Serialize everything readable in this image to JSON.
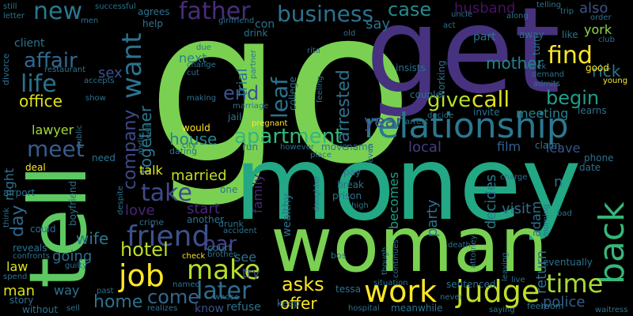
{
  "words": [
    {
      "text": "go",
      "color": "#7ad151"
    },
    {
      "text": "get",
      "color": "#46327e"
    },
    {
      "text": "tell",
      "color": "#5ec962"
    },
    {
      "text": "money",
      "color": "#22a884"
    },
    {
      "text": "woman",
      "color": "#7ad151"
    },
    {
      "text": "relationship",
      "color": "#2a788e"
    },
    {
      "text": "back",
      "color": "#35b779"
    },
    {
      "text": "judge",
      "color": "#bddf26"
    },
    {
      "text": "work",
      "color": "#fde725"
    },
    {
      "text": "job",
      "color": "#fde725"
    },
    {
      "text": "make",
      "color": "#b5de2b"
    },
    {
      "text": "friend",
      "color": "#3b528b"
    },
    {
      "text": "time",
      "color": "#a5db36"
    },
    {
      "text": "later",
      "color": "#2e6e8e"
    },
    {
      "text": "new",
      "color": "#2a788e"
    },
    {
      "text": "father",
      "color": "#472d7b"
    },
    {
      "text": "business",
      "color": "#2c728e"
    },
    {
      "text": "case",
      "color": "#238a8d"
    },
    {
      "text": "find",
      "color": "#fde725"
    },
    {
      "text": "life",
      "color": "#2c728e"
    },
    {
      "text": "want",
      "color": "#2c728e"
    },
    {
      "text": "affair",
      "color": "#31688e"
    },
    {
      "text": "meet",
      "color": "#365c8d"
    },
    {
      "text": "apartment",
      "color": "#35b779"
    },
    {
      "text": "call",
      "color": "#dde318"
    },
    {
      "text": "give",
      "color": "#b5de2b"
    },
    {
      "text": "take",
      "color": "#3e4a89"
    },
    {
      "text": "leaf",
      "color": "#2c728e"
    },
    {
      "text": "year",
      "color": "#3b528b"
    },
    {
      "text": "begin",
      "color": "#1f9e89"
    },
    {
      "text": "end",
      "color": "#3b528b"
    },
    {
      "text": "hotel",
      "color": "#bddf26"
    },
    {
      "text": "come",
      "color": "#31688e"
    },
    {
      "text": "asks",
      "color": "#fde725"
    },
    {
      "text": "police",
      "color": "#355f8d"
    },
    {
      "text": "bar",
      "color": "#414487"
    },
    {
      "text": "office",
      "color": "#dde318"
    },
    {
      "text": "home",
      "color": "#2c728e"
    },
    {
      "text": "offer",
      "color": "#fde725"
    },
    {
      "text": "mother",
      "color": "#26828e"
    },
    {
      "text": "company",
      "color": "#3e4a89"
    },
    {
      "text": "together",
      "color": "#2a788e"
    },
    {
      "text": "house",
      "color": "#26828e"
    },
    {
      "text": "love",
      "color": "#482475"
    },
    {
      "text": "rick",
      "color": "#2c728e"
    },
    {
      "text": "married",
      "color": "#c2df23"
    },
    {
      "text": "start",
      "color": "#482878"
    },
    {
      "text": "sex",
      "color": "#3b528b"
    },
    {
      "text": "day",
      "color": "#31688e"
    },
    {
      "text": "party",
      "color": "#2c728e"
    },
    {
      "text": "arrested",
      "color": "#2c728e"
    },
    {
      "text": "wife",
      "color": "#2a788e"
    },
    {
      "text": "husband",
      "color": "#471063"
    },
    {
      "text": "also",
      "color": "#3b528b"
    },
    {
      "text": "york",
      "color": "#90d743"
    },
    {
      "text": "meeting",
      "color": "#26828e"
    },
    {
      "text": "leave",
      "color": "#3b528b"
    },
    {
      "text": "film",
      "color": "#355f8d"
    },
    {
      "text": "local",
      "color": "#433e85"
    },
    {
      "text": "decides",
      "color": "#287c8e"
    },
    {
      "text": "visit",
      "color": "#2e6e8e"
    },
    {
      "text": "return",
      "color": "#2e6e8e"
    },
    {
      "text": "becomes",
      "color": "#1f9e89"
    },
    {
      "text": "going",
      "color": "#2e6e8e"
    },
    {
      "text": "lawyer",
      "color": "#a0da39"
    },
    {
      "text": "man",
      "color": "#d8e219"
    },
    {
      "text": "law",
      "color": "#dde318"
    },
    {
      "text": "talk",
      "color": "#e5e419"
    },
    {
      "text": "trial",
      "color": "#2a788e"
    },
    {
      "text": "next",
      "color": "#26828e"
    },
    {
      "text": "say",
      "color": "#2c728e"
    },
    {
      "text": "see",
      "color": "#2c728e"
    },
    {
      "text": "try",
      "color": "#3b528b"
    },
    {
      "text": "way",
      "color": "#2c728e"
    },
    {
      "text": "family",
      "color": "#482878"
    },
    {
      "text": "adam",
      "color": "#2c728e"
    },
    {
      "text": "know",
      "color": "#3b528b"
    },
    {
      "text": "refuse",
      "color": "#2c728e"
    },
    {
      "text": "night",
      "color": "#2c728e"
    },
    {
      "text": "client",
      "color": "#2c728e"
    },
    {
      "text": "con",
      "color": "#2c728e"
    },
    {
      "text": "part",
      "color": "#2c728e"
    },
    {
      "text": "agrees",
      "color": "#2c728e"
    },
    {
      "text": "could",
      "color": "#2c728e"
    },
    {
      "text": "wealthy",
      "color": "#2c728e"
    },
    {
      "text": "would",
      "color": "#fde725"
    },
    {
      "text": "pay",
      "color": "#2c728e"
    },
    {
      "text": "break",
      "color": "#2c728e"
    },
    {
      "text": "prison",
      "color": "#2c728e"
    },
    {
      "text": "drink",
      "color": "#2c728e"
    },
    {
      "text": "court",
      "color": "#2c728e"
    },
    {
      "text": "story",
      "color": "#2c728e"
    },
    {
      "text": "reveals",
      "color": "#2c728e"
    },
    {
      "text": "couple",
      "color": "#2c728e"
    },
    {
      "text": "invite",
      "color": "#2c728e"
    },
    {
      "text": "learns",
      "color": "#2c728e"
    },
    {
      "text": "good",
      "color": "#fde725"
    },
    {
      "text": "help",
      "color": "#2c728e"
    },
    {
      "text": "run",
      "color": "#2c728e"
    },
    {
      "text": "deal",
      "color": "#fde725"
    },
    {
      "text": "date",
      "color": "#2c728e"
    },
    {
      "text": "phone",
      "color": "#2c728e"
    },
    {
      "text": "claim",
      "color": "#2c728e"
    },
    {
      "text": "name",
      "color": "#2c728e"
    },
    {
      "text": "move",
      "color": "#2c728e"
    },
    {
      "text": "keep",
      "color": "#2c728e"
    },
    {
      "text": "tessa",
      "color": "#2c728e"
    },
    {
      "text": "sentenced",
      "color": "#2c728e"
    },
    {
      "text": "college",
      "color": "#2c728e"
    },
    {
      "text": "jail",
      "color": "#2c728e"
    },
    {
      "text": "crime",
      "color": "#2c728e"
    },
    {
      "text": "dating",
      "color": "#2c728e"
    },
    {
      "text": "drunk",
      "color": "#2c728e"
    },
    {
      "text": "another",
      "color": "#2c728e"
    },
    {
      "text": "one",
      "color": "#2c728e"
    },
    {
      "text": "room",
      "color": "#2c728e"
    },
    {
      "text": "feel",
      "color": "#2c728e"
    },
    {
      "text": "waitress",
      "color": "#2c728e"
    },
    {
      "text": "eventually",
      "color": "#2c728e"
    },
    {
      "text": "meanwhile",
      "color": "#2c728e"
    },
    {
      "text": "without",
      "color": "#2c728e"
    },
    {
      "text": "sell",
      "color": "#2c728e"
    },
    {
      "text": "realizes",
      "color": "#2c728e"
    },
    {
      "text": "past",
      "color": "#2c728e"
    },
    {
      "text": "named",
      "color": "#2c728e"
    },
    {
      "text": "whose",
      "color": "#2c728e"
    },
    {
      "text": "hospital",
      "color": "#2c728e"
    },
    {
      "text": "live",
      "color": "#2c728e"
    },
    {
      "text": "situation",
      "color": "#2c728e"
    },
    {
      "text": "continues",
      "color": "#2c728e"
    },
    {
      "text": "never",
      "color": "#2c728e"
    },
    {
      "text": "saying",
      "color": "#2c728e"
    },
    {
      "text": "bos",
      "color": "#2c728e"
    },
    {
      "text": "death",
      "color": "#2c728e"
    },
    {
      "text": "leaving",
      "color": "#2c728e"
    },
    {
      "text": "attorney",
      "color": "#2c728e"
    },
    {
      "text": "morning",
      "color": "#2c728e"
    },
    {
      "text": "bad",
      "color": "#2c728e"
    },
    {
      "text": "charge",
      "color": "#2c728e"
    },
    {
      "text": "high",
      "color": "#2c728e"
    },
    {
      "text": "daughter",
      "color": "#2c728e"
    },
    {
      "text": "even",
      "color": "#2c728e"
    },
    {
      "text": "though",
      "color": "#2c728e"
    },
    {
      "text": "place",
      "color": "#2c728e"
    },
    {
      "text": "however",
      "color": "#2c728e"
    },
    {
      "text": "city",
      "color": "#2c728e"
    },
    {
      "text": "pregnant",
      "color": "#fde725"
    },
    {
      "text": "andie",
      "color": "#2c728e"
    },
    {
      "text": "well",
      "color": "#2c728e"
    },
    {
      "text": "despite",
      "color": "#2c728e"
    },
    {
      "text": "boyfriend",
      "color": "#2c728e"
    },
    {
      "text": "need",
      "color": "#2c728e"
    },
    {
      "text": "public",
      "color": "#2c728e"
    },
    {
      "text": "airport",
      "color": "#2c728e"
    },
    {
      "text": "think",
      "color": "#2c728e"
    },
    {
      "text": "spend",
      "color": "#2c728e"
    },
    {
      "text": "confronts",
      "color": "#2c728e"
    },
    {
      "text": "guilty",
      "color": "#2c728e"
    },
    {
      "text": "accident",
      "color": "#2c728e"
    },
    {
      "text": "brother",
      "color": "#2c728e"
    },
    {
      "text": "check",
      "color": "#fde725"
    },
    {
      "text": "marriage",
      "color": "#2c728e"
    },
    {
      "text": "making",
      "color": "#2c728e"
    },
    {
      "text": "cut",
      "color": "#2c728e"
    },
    {
      "text": "change",
      "color": "#2c728e"
    },
    {
      "text": "due",
      "color": "#2c728e"
    },
    {
      "text": "partner",
      "color": "#2c728e"
    },
    {
      "text": "rita",
      "color": "#2c728e"
    },
    {
      "text": "feeling",
      "color": "#2c728e"
    },
    {
      "text": "arrest",
      "color": "#2c728e"
    },
    {
      "text": "decide",
      "color": "#2c728e"
    },
    {
      "text": "insists",
      "color": "#2c728e"
    },
    {
      "text": "demand",
      "color": "#2c728e"
    },
    {
      "text": "admits",
      "color": "#2c728e"
    },
    {
      "text": "young",
      "color": "#fde725"
    },
    {
      "text": "club",
      "color": "#2c728e"
    },
    {
      "text": "trip",
      "color": "#2c728e"
    },
    {
      "text": "order",
      "color": "#2c728e"
    },
    {
      "text": "week",
      "color": "#2c728e"
    },
    {
      "text": "along",
      "color": "#2c728e"
    },
    {
      "text": "uncle",
      "color": "#2c728e"
    },
    {
      "text": "turn",
      "color": "#2c728e"
    },
    {
      "text": "away",
      "color": "#2c728e"
    },
    {
      "text": "like",
      "color": "#2c728e"
    },
    {
      "text": "telling",
      "color": "#2c728e"
    },
    {
      "text": "act",
      "color": "#2c728e"
    },
    {
      "text": "old",
      "color": "#2c728e"
    },
    {
      "text": "girlfriend",
      "color": "#2c728e"
    },
    {
      "text": "still",
      "color": "#2c728e"
    },
    {
      "text": "letter",
      "color": "#2c728e"
    },
    {
      "text": "successful",
      "color": "#2c728e"
    },
    {
      "text": "men",
      "color": "#2c728e"
    },
    {
      "text": "divorce",
      "color": "#2c728e"
    },
    {
      "text": "restaurant",
      "color": "#2c728e"
    },
    {
      "text": "accepts",
      "color": "#2c728e"
    },
    {
      "text": "show",
      "color": "#2c728e"
    },
    {
      "text": "working",
      "color": "#2c728e"
    },
    {
      "text": "n",
      "color": "#2c728e"
    }
  ]
}
